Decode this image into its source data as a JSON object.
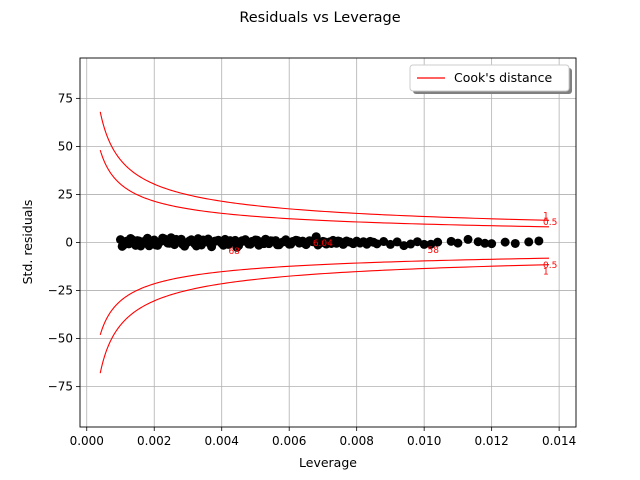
{
  "chart_data": {
    "type": "scatter",
    "title": "Residuals vs Leverage",
    "xlabel": "Leverage",
    "ylabel": "Std. residuals",
    "xlim": [
      -0.0002,
      0.0145
    ],
    "ylim": [
      -96,
      96
    ],
    "x_ticks": [
      0.0,
      0.002,
      0.004,
      0.006,
      0.008,
      0.01,
      0.012,
      0.014
    ],
    "x_tick_labels": [
      "0.000",
      "0.002",
      "0.004",
      "0.006",
      "0.008",
      "0.010",
      "0.012",
      "0.014"
    ],
    "y_ticks": [
      -75,
      -50,
      -25,
      0,
      25,
      50,
      75
    ],
    "y_tick_labels": [
      "−75",
      "−50",
      "−25",
      "0",
      "25",
      "50",
      "75"
    ],
    "grid": true,
    "legend": {
      "position": "top-right",
      "entries": [
        {
          "label": "Cook's distance",
          "color": "#ff0000",
          "marker": "line"
        }
      ]
    },
    "colors": {
      "points": "#000000",
      "cooks": "#ff0000",
      "grid": "#b0b0b0"
    },
    "cooks_distance": {
      "levels": [
        0.5,
        1
      ],
      "level_labels": [
        "0.5",
        "1"
      ],
      "x_start": 0.0004,
      "x_end": 0.0137,
      "k": 1.85
    },
    "point_annotations": [
      {
        "label": "68",
        "x": 0.0042,
        "y": -4
      },
      {
        "label": "6.04",
        "x": 0.0067,
        "y": 0.3
      },
      {
        "label": "58",
        "x": 0.0101,
        "y": -3.5
      }
    ],
    "points_x": [
      0.001,
      0.0011,
      0.0012,
      0.0013,
      0.0014,
      0.0015,
      0.0016,
      0.0017,
      0.0018,
      0.0019,
      0.002,
      0.0021,
      0.0022,
      0.0023,
      0.0024,
      0.0025,
      0.0026,
      0.0027,
      0.0028,
      0.0029,
      0.003,
      0.0031,
      0.0032,
      0.0033,
      0.0034,
      0.0035,
      0.0036,
      0.0037,
      0.0038,
      0.0039,
      0.004,
      0.0041,
      0.0042,
      0.0043,
      0.0044,
      0.0045,
      0.0046,
      0.0047,
      0.0048,
      0.0049,
      0.005,
      0.0051,
      0.0052,
      0.0053,
      0.0054,
      0.0055,
      0.0056,
      0.0057,
      0.0058,
      0.0059,
      0.006,
      0.0061,
      0.0062,
      0.0063,
      0.0064,
      0.0065,
      0.0066,
      0.0067,
      0.0068,
      0.0069,
      0.007,
      0.0071,
      0.0072,
      0.0073,
      0.0074,
      0.0075,
      0.0076,
      0.0077,
      0.0078,
      0.0079,
      0.008,
      0.0081,
      0.0082,
      0.0083,
      0.0084,
      0.0085,
      0.0086,
      0.0088,
      0.009,
      0.0092,
      0.0094,
      0.0096,
      0.0098,
      0.01,
      0.0102,
      0.0104,
      0.0108,
      0.011,
      0.0113,
      0.0116,
      0.0118,
      0.012,
      0.0124,
      0.0127,
      0.0131,
      0.0134,
      0.00105,
      0.00115,
      0.00125,
      0.00135,
      0.00145,
      0.00155,
      0.00165,
      0.00175,
      0.00185,
      0.00195,
      0.00205,
      0.00225,
      0.00245,
      0.00265,
      0.00285,
      0.00305,
      0.00325,
      0.00345,
      0.00365,
      0.00385,
      0.00405,
      0.00425,
      0.00445,
      0.00465,
      0.00485,
      0.00505,
      0.00525,
      0.00545,
      0.00565,
      0.00585,
      0.00605,
      0.00625,
      0.00645,
      0.00665,
      0.00685,
      0.00705,
      0.00725,
      0.00745,
      0.00765
    ],
    "points_y": [
      1.5,
      -1.2,
      0.8,
      2.1,
      -0.5,
      1.0,
      -1.8,
      0.4,
      2.2,
      -0.9,
      1.3,
      -1.5,
      0.6,
      1.9,
      -0.3,
      2.5,
      -1.1,
      0.9,
      1.7,
      -1.9,
      0.2,
      1.4,
      -0.7,
      2.0,
      -1.3,
      0.5,
      1.8,
      -2.2,
      0.7,
      1.2,
      -0.4,
      1.6,
      -1.0,
      0.3,
      1.1,
      -1.6,
      0.9,
      1.5,
      -0.8,
      0.6,
      1.3,
      -1.4,
      0.4,
      1.7,
      -0.6,
      0.8,
      1.0,
      -1.2,
      0.2,
      1.4,
      -0.9,
      0.5,
      1.2,
      -0.3,
      0.7,
      -1.1,
      0.9,
      0.4,
      3.0,
      -0.5,
      0.6,
      -0.8,
      0.3,
      1.1,
      -0.4,
      0.5,
      -1.0,
      0.8,
      0.2,
      -0.6,
      0.7,
      -0.3,
      0.4,
      -0.9,
      0.6,
      0.1,
      -0.7,
      0.5,
      -1.0,
      0.3,
      -1.6,
      -0.8,
      0.4,
      -1.0,
      -0.9,
      0.2,
      0.6,
      -0.3,
      1.6,
      0.4,
      -0.4,
      -0.6,
      0.2,
      -0.5,
      0.3,
      0.8,
      -2.0,
      0.5,
      -0.7,
      1.4,
      -1.5,
      0.8,
      -0.2,
      1.1,
      -1.7,
      0.6,
      -1.3,
      2.3,
      -0.4,
      1.6,
      -1.1,
      0.9,
      -1.8,
      1.3,
      -0.5,
      0.8,
      -1.4,
      1.0,
      -2.5,
      0.7,
      -0.9,
      1.2,
      -0.6,
      0.9,
      -1.2,
      0.5,
      -0.8,
      1.0,
      -0.4,
      0.7,
      -1.3,
      0.3,
      -0.5,
      0.8,
      -0.2
    ]
  }
}
